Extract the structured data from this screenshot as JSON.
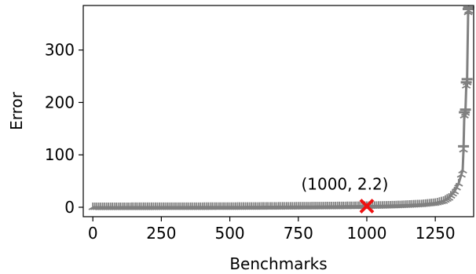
{
  "chart_data": {
    "type": "line",
    "title": "",
    "xlabel": "Benchmarks",
    "ylabel": "Error",
    "xlim": [
      -35,
      1390
    ],
    "ylim": [
      -18,
      385
    ],
    "xticks": [
      0,
      250,
      500,
      750,
      1000,
      1250
    ],
    "yticks": [
      0,
      100,
      200,
      300
    ],
    "grid": false,
    "series": [
      {
        "color": "#808080",
        "marker": "tri_down",
        "points": [
          [
            0,
            0.0
          ],
          [
            100,
            0.05
          ],
          [
            200,
            0.1
          ],
          [
            300,
            0.15
          ],
          [
            400,
            0.25
          ],
          [
            500,
            0.4
          ],
          [
            600,
            0.6
          ],
          [
            700,
            0.9
          ],
          [
            800,
            1.2
          ],
          [
            900,
            1.6
          ],
          [
            1000,
            2.2
          ],
          [
            1050,
            2.6
          ],
          [
            1100,
            3.2
          ],
          [
            1150,
            4.2
          ],
          [
            1200,
            5.5
          ],
          [
            1250,
            8
          ],
          [
            1280,
            12
          ],
          [
            1300,
            18
          ],
          [
            1320,
            30
          ],
          [
            1335,
            45
          ],
          [
            1345,
            62
          ],
          [
            1350,
            70
          ],
          [
            1353,
            110
          ],
          [
            1356,
            175
          ],
          [
            1360,
            180
          ],
          [
            1363,
            232
          ],
          [
            1366,
            238
          ],
          [
            1370,
            372
          ],
          [
            1372,
            375
          ]
        ]
      }
    ],
    "highlight": {
      "x": 1000,
      "y": 2.2,
      "label": "(1000, 2.2)",
      "color": "#ee1111",
      "marker": "x"
    }
  }
}
